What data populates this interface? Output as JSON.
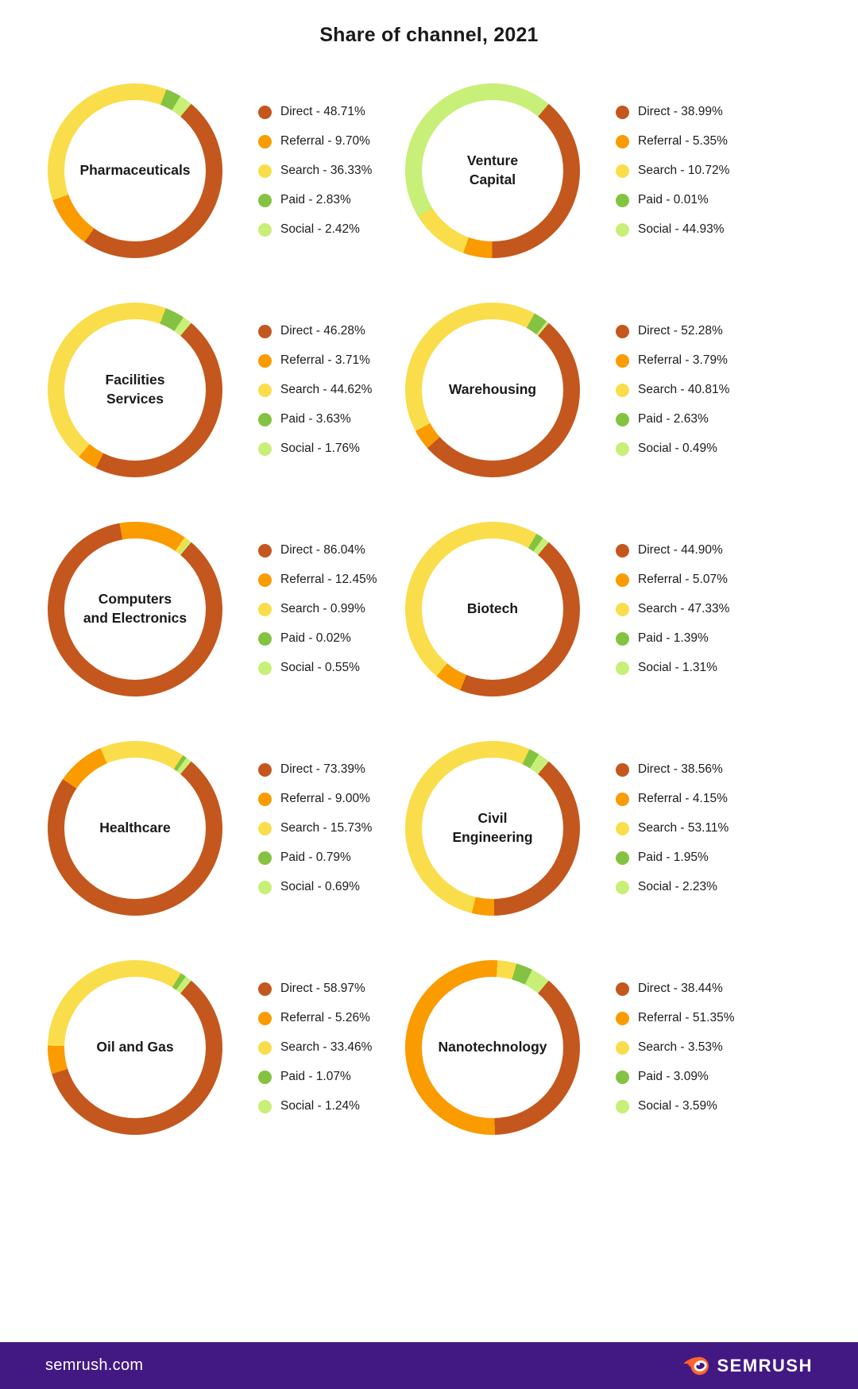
{
  "page": {
    "title": "Share of channel, 2021"
  },
  "palette": {
    "Direct": "#C4571D",
    "Referral": "#FA9B00",
    "Search": "#FADD4B",
    "Paid": "#84C341",
    "Social": "#C8EF78",
    "footer_bg": "#421983",
    "text": "#1a1a1a"
  },
  "legend_position": "right",
  "chart_data": [
    {
      "type": "pie",
      "donut": true,
      "start_angle_deg": 40,
      "title": "Pharmaceuticals",
      "display_label": "Pharmaceuticals",
      "categories": [
        "Direct",
        "Referral",
        "Search",
        "Paid",
        "Social"
      ],
      "values": [
        48.71,
        9.7,
        36.33,
        2.83,
        2.42
      ],
      "legend_labels": [
        "Direct - 48.71%",
        "Referral - 9.70%",
        "Search - 36.33%",
        "Paid - 2.83%",
        "Social - 2.42%"
      ]
    },
    {
      "type": "pie",
      "donut": true,
      "start_angle_deg": 40,
      "title": "Venture Capital",
      "display_label": "Venture\nCapital",
      "categories": [
        "Direct",
        "Referral",
        "Search",
        "Paid",
        "Social"
      ],
      "values": [
        38.99,
        5.35,
        10.72,
        0.01,
        44.93
      ],
      "legend_labels": [
        "Direct - 38.99%",
        "Referral - 5.35%",
        "Search - 10.72%",
        "Paid - 0.01%",
        "Social - 44.93%"
      ]
    },
    {
      "type": "pie",
      "donut": true,
      "start_angle_deg": 40,
      "title": "Facilities Services",
      "display_label": "Facilities\nServices",
      "categories": [
        "Direct",
        "Referral",
        "Search",
        "Paid",
        "Social"
      ],
      "values": [
        46.28,
        3.71,
        44.62,
        3.63,
        1.76
      ],
      "legend_labels": [
        "Direct - 46.28%",
        "Referral - 3.71%",
        "Search - 44.62%",
        "Paid - 3.63%",
        "Social - 1.76%"
      ]
    },
    {
      "type": "pie",
      "donut": true,
      "start_angle_deg": 40,
      "title": "Warehousing",
      "display_label": "Warehousing",
      "categories": [
        "Direct",
        "Referral",
        "Search",
        "Paid",
        "Social"
      ],
      "values": [
        52.28,
        3.79,
        40.81,
        2.63,
        0.49
      ],
      "legend_labels": [
        "Direct - 52.28%",
        "Referral - 3.79%",
        "Search - 40.81%",
        "Paid - 2.63%",
        "Social - 0.49%"
      ]
    },
    {
      "type": "pie",
      "donut": true,
      "start_angle_deg": 40,
      "title": "Computers and Electronics",
      "display_label": "Computers\nand Electronics",
      "categories": [
        "Direct",
        "Referral",
        "Search",
        "Paid",
        "Social"
      ],
      "values": [
        86.04,
        12.45,
        0.99,
        0.02,
        0.55
      ],
      "legend_labels": [
        "Direct - 86.04%",
        "Referral - 12.45%",
        "Search - 0.99%",
        "Paid - 0.02%",
        "Social - 0.55%"
      ]
    },
    {
      "type": "pie",
      "donut": true,
      "start_angle_deg": 40,
      "title": "Biotech",
      "display_label": "Biotech",
      "categories": [
        "Direct",
        "Referral",
        "Search",
        "Paid",
        "Social"
      ],
      "values": [
        44.9,
        5.07,
        47.33,
        1.39,
        1.31
      ],
      "legend_labels": [
        "Direct - 44.90%",
        "Referral - 5.07%",
        "Search - 47.33%",
        "Paid - 1.39%",
        "Social - 1.31%"
      ]
    },
    {
      "type": "pie",
      "donut": true,
      "start_angle_deg": 40,
      "title": "Healthcare",
      "display_label": "Healthcare",
      "categories": [
        "Direct",
        "Referral",
        "Search",
        "Paid",
        "Social"
      ],
      "values": [
        73.39,
        9.0,
        15.73,
        0.79,
        0.69
      ],
      "legend_labels": [
        "Direct - 73.39%",
        "Referral - 9.00%",
        "Search - 15.73%",
        "Paid - 0.79%",
        "Social - 0.69%"
      ]
    },
    {
      "type": "pie",
      "donut": true,
      "start_angle_deg": 40,
      "title": "Civil Engineering",
      "display_label": "Civil\nEngineering",
      "categories": [
        "Direct",
        "Referral",
        "Search",
        "Paid",
        "Social"
      ],
      "values": [
        38.56,
        4.15,
        53.11,
        1.95,
        2.23
      ],
      "legend_labels": [
        "Direct - 38.56%",
        "Referral - 4.15%",
        "Search - 53.11%",
        "Paid - 1.95%",
        "Social - 2.23%"
      ]
    },
    {
      "type": "pie",
      "donut": true,
      "start_angle_deg": 40,
      "title": "Oil and Gas",
      "display_label": "Oil and Gas",
      "categories": [
        "Direct",
        "Referral",
        "Search",
        "Paid",
        "Social"
      ],
      "values": [
        58.97,
        5.26,
        33.46,
        1.07,
        1.24
      ],
      "legend_labels": [
        "Direct - 58.97%",
        "Referral - 5.26%",
        "Search - 33.46%",
        "Paid - 1.07%",
        "Social - 1.24%"
      ]
    },
    {
      "type": "pie",
      "donut": true,
      "start_angle_deg": 40,
      "title": "Nanotechnology",
      "display_label": "Nanotechnology",
      "categories": [
        "Direct",
        "Referral",
        "Search",
        "Paid",
        "Social"
      ],
      "values": [
        38.44,
        51.35,
        3.53,
        3.09,
        3.59
      ],
      "legend_labels": [
        "Direct - 38.44%",
        "Referral - 51.35%",
        "Search - 3.53%",
        "Paid - 3.09%",
        "Social - 3.59%"
      ]
    }
  ],
  "footer": {
    "site": "semrush.com",
    "brand": "SEMRUSH"
  }
}
